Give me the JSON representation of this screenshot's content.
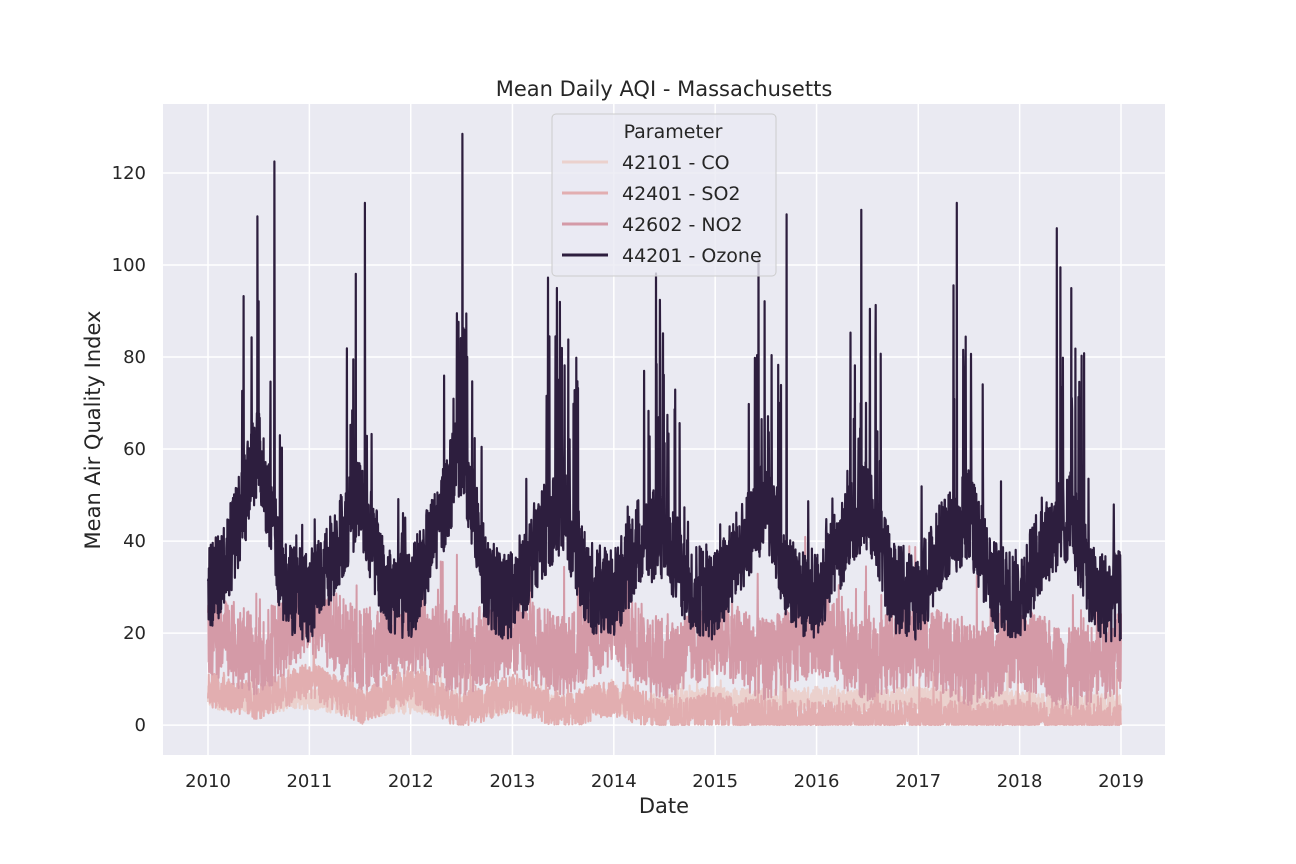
{
  "chart_data": {
    "type": "line",
    "title": "Mean Daily AQI - Massachusetts",
    "xlabel": "Date",
    "ylabel": "Mean Air Quality Index",
    "x_domain": [
      "2010-01-01",
      "2019-01-01"
    ],
    "ylim": [
      -6.5,
      135
    ],
    "x_ticks": [
      "2010",
      "2011",
      "2012",
      "2013",
      "2014",
      "2015",
      "2016",
      "2017",
      "2018",
      "2019"
    ],
    "y_ticks": [
      0,
      20,
      40,
      60,
      80,
      100,
      120
    ],
    "grid": true,
    "background": "#eaeaf2",
    "legend": {
      "title": "Parameter",
      "placement": "top-center"
    },
    "series": [
      {
        "name": "42101 - CO",
        "color": "#ebd1cd",
        "points": [
          [
            "2010-01-01",
            6
          ],
          [
            "2010-07-01",
            5
          ],
          [
            "2011-01-01",
            6
          ],
          [
            "2011-07-01",
            4
          ],
          [
            "2012-01-01",
            5
          ],
          [
            "2012-07-01",
            4
          ],
          [
            "2013-01-01",
            5
          ],
          [
            "2013-07-01",
            4
          ],
          [
            "2014-01-01",
            5
          ],
          [
            "2014-07-01",
            4
          ],
          [
            "2015-01-01",
            6
          ],
          [
            "2015-07-01",
            5
          ],
          [
            "2016-01-01",
            6
          ],
          [
            "2016-07-01",
            5
          ],
          [
            "2017-01-01",
            6
          ],
          [
            "2017-07-01",
            5
          ],
          [
            "2018-01-01",
            5
          ],
          [
            "2018-07-01",
            4
          ],
          [
            "2019-01-01",
            5
          ]
        ]
      },
      {
        "name": "42401 - SO2",
        "color": "#e2aeb0",
        "points": [
          [
            "2010-01-01",
            8
          ],
          [
            "2010-07-01",
            5
          ],
          [
            "2011-01-01",
            10
          ],
          [
            "2011-07-01",
            4
          ],
          [
            "2012-01-01",
            9
          ],
          [
            "2012-07-01",
            3
          ],
          [
            "2013-01-01",
            7
          ],
          [
            "2013-07-01",
            3
          ],
          [
            "2014-01-01",
            6
          ],
          [
            "2014-07-01",
            2
          ],
          [
            "2015-01-01",
            3
          ],
          [
            "2015-07-01",
            1.5
          ],
          [
            "2016-01-01",
            2
          ],
          [
            "2016-07-01",
            1
          ],
          [
            "2017-01-01",
            2
          ],
          [
            "2017-07-01",
            1
          ],
          [
            "2018-01-01",
            1.5
          ],
          [
            "2018-07-01",
            0.5
          ],
          [
            "2019-01-01",
            1
          ]
        ]
      },
      {
        "name": "42602 - NO2",
        "color": "#d49aa7",
        "points": [
          [
            "2010-01-01",
            20
          ],
          [
            "2010-07-01",
            15
          ],
          [
            "2011-01-01",
            24
          ],
          [
            "2011-07-01",
            16
          ],
          [
            "2012-01-01",
            20
          ],
          [
            "2012-07-01",
            15
          ],
          [
            "2013-01-01",
            20
          ],
          [
            "2013-07-01",
            15
          ],
          [
            "2014-01-01",
            22
          ],
          [
            "2014-07-01",
            14
          ],
          [
            "2015-01-01",
            20
          ],
          [
            "2015-07-01",
            14
          ],
          [
            "2016-01-01",
            20
          ],
          [
            "2016-07-01",
            14
          ],
          [
            "2017-01-01",
            18
          ],
          [
            "2017-07-01",
            13
          ],
          [
            "2018-01-01",
            17
          ],
          [
            "2018-07-01",
            12
          ],
          [
            "2019-01-01",
            16
          ]
        ]
      },
      {
        "name": "44201 - Ozone",
        "color": "#2d1e3e",
        "points": [
          [
            "2010-01-01",
            28
          ],
          [
            "2010-04-01",
            40
          ],
          [
            "2010-07-01",
            60
          ],
          [
            "2010-10-01",
            30
          ],
          [
            "2011-01-01",
            28
          ],
          [
            "2011-04-01",
            38
          ],
          [
            "2011-07-01",
            50
          ],
          [
            "2011-10-01",
            30
          ],
          [
            "2012-01-01",
            28
          ],
          [
            "2012-04-01",
            42
          ],
          [
            "2012-07-01",
            60
          ],
          [
            "2012-10-01",
            30
          ],
          [
            "2013-01-01",
            28
          ],
          [
            "2013-04-01",
            40
          ],
          [
            "2013-07-01",
            48
          ],
          [
            "2013-10-01",
            30
          ],
          [
            "2014-01-01",
            28
          ],
          [
            "2014-04-01",
            40
          ],
          [
            "2014-07-01",
            42
          ],
          [
            "2014-10-01",
            30
          ],
          [
            "2015-01-01",
            28
          ],
          [
            "2015-04-01",
            38
          ],
          [
            "2015-07-01",
            48
          ],
          [
            "2015-10-01",
            30
          ],
          [
            "2016-01-01",
            28
          ],
          [
            "2016-04-01",
            40
          ],
          [
            "2016-07-01",
            48
          ],
          [
            "2016-10-01",
            30
          ],
          [
            "2017-01-01",
            28
          ],
          [
            "2017-04-01",
            40
          ],
          [
            "2017-07-01",
            46
          ],
          [
            "2017-10-01",
            30
          ],
          [
            "2018-01-01",
            28
          ],
          [
            "2018-04-01",
            40
          ],
          [
            "2018-07-01",
            46
          ],
          [
            "2018-10-01",
            28
          ],
          [
            "2019-01-01",
            28
          ]
        ],
        "peaks": [
          [
            "2010-08-28",
            122.5
          ],
          [
            "2011-07-20",
            113.5
          ],
          [
            "2012-07-05",
            128.5
          ],
          [
            "2013-06-10",
            95
          ],
          [
            "2014-04-20",
            77
          ],
          [
            "2015-09-15",
            111
          ],
          [
            "2016-06-10",
            112
          ],
          [
            "2017-05-20",
            113.5
          ],
          [
            "2018-05-15",
            108
          ]
        ]
      }
    ]
  }
}
